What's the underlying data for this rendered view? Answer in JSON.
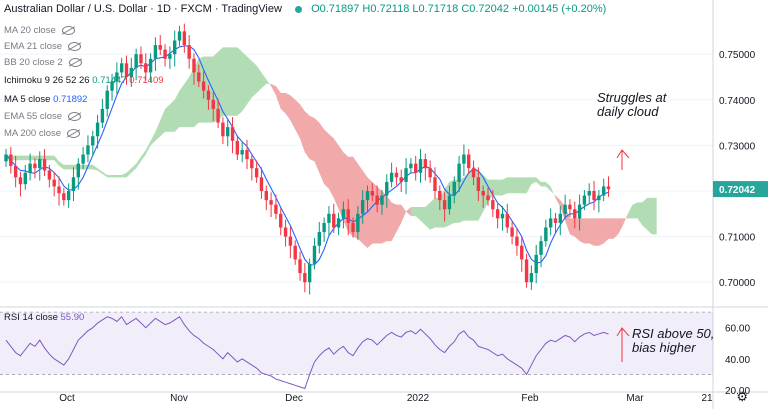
{
  "header": {
    "title": "Australian Dollar / U.S. Dollar · 1D · FXCM · TradingView",
    "ohlc": "O0.71897 H0.72118 L0.71718 C0.72042 +0.00145 (+0.20%)"
  },
  "indicators": [
    {
      "label": "MA 20 close",
      "value": "",
      "hidden": true
    },
    {
      "label": "EMA 21 close",
      "value": "",
      "hidden": true
    },
    {
      "label": "BB 20 close 2",
      "value": "",
      "hidden": true
    },
    {
      "label": "Ichimoku 9 26 52 26",
      "value": "0.71447",
      "value2": "0.71409",
      "hidden": false
    },
    {
      "label": "MA 5 close",
      "value": "0.71892",
      "hidden": false
    },
    {
      "label": "EMA 55 close",
      "value": "",
      "hidden": true
    },
    {
      "label": "MA 200 close",
      "value": "",
      "hidden": true
    }
  ],
  "rsi": {
    "label": "RSI 14 close",
    "value": "55.90"
  },
  "annotations": {
    "cloud_line1": "Struggles at",
    "cloud_line2": "daily cloud",
    "rsi_line1": "RSI above 50,",
    "rsi_line2": "bias higher"
  },
  "price_tag": "0.72042",
  "colors": {
    "up": "#089981",
    "down": "#f23645",
    "cloud_bull": "#a5d6a7",
    "cloud_bear": "#ef9a9a",
    "ma5": "#2962ff",
    "rsi": "#7e57c2",
    "tag": "#26a69a"
  },
  "chart_data": [
    {
      "type": "candlestick",
      "title": "Australian Dollar / U.S. Dollar · 1D · FXCM",
      "ylim": [
        0.695,
        0.7575
      ],
      "y_ticks": [
        0.7,
        0.71,
        0.72,
        0.73,
        0.74,
        0.75
      ],
      "y_tick_labels": [
        "0.70000",
        "0.71000",
        "0.72000",
        "0.73000",
        "0.74000",
        "0.75000"
      ],
      "x_tick_labels": [
        "Oct",
        "Nov",
        "Dec",
        "2022",
        "Feb",
        "Mar",
        "21"
      ],
      "last_close": 0.72042,
      "closes": [
        0.728,
        0.7255,
        0.723,
        0.7215,
        0.724,
        0.726,
        0.725,
        0.727,
        0.7245,
        0.7225,
        0.721,
        0.7195,
        0.718,
        0.72,
        0.723,
        0.726,
        0.728,
        0.73,
        0.732,
        0.735,
        0.738,
        0.742,
        0.744,
        0.746,
        0.748,
        0.745,
        0.747,
        0.75,
        0.748,
        0.746,
        0.749,
        0.752,
        0.751,
        0.749,
        0.75,
        0.753,
        0.755,
        0.752,
        0.749,
        0.746,
        0.744,
        0.742,
        0.74,
        0.738,
        0.735,
        0.732,
        0.734,
        0.731,
        0.728,
        0.729,
        0.727,
        0.725,
        0.723,
        0.72,
        0.718,
        0.717,
        0.715,
        0.712,
        0.71,
        0.708,
        0.705,
        0.702,
        0.7,
        0.704,
        0.708,
        0.711,
        0.713,
        0.715,
        0.712,
        0.714,
        0.716,
        0.713,
        0.711,
        0.715,
        0.718,
        0.72,
        0.719,
        0.717,
        0.719,
        0.722,
        0.724,
        0.723,
        0.722,
        0.725,
        0.726,
        0.724,
        0.727,
        0.725,
        0.723,
        0.72,
        0.718,
        0.716,
        0.719,
        0.722,
        0.726,
        0.728,
        0.725,
        0.723,
        0.72,
        0.719,
        0.718,
        0.716,
        0.714,
        0.715,
        0.712,
        0.71,
        0.708,
        0.705,
        0.7,
        0.702,
        0.706,
        0.709,
        0.712,
        0.714,
        0.713,
        0.715,
        0.717,
        0.716,
        0.714,
        0.717,
        0.719,
        0.72,
        0.718,
        0.719,
        0.721,
        0.7204
      ],
      "rsi": {
        "ylim": [
          20,
          72
        ],
        "y_ticks": [
          20,
          40,
          60
        ],
        "y_tick_labels": [
          "20.00",
          "40.00",
          "60.00"
        ],
        "values": [
          52,
          48,
          44,
          42,
          46,
          50,
          48,
          52,
          47,
          43,
          40,
          38,
          36,
          40,
          46,
          52,
          55,
          58,
          60,
          63,
          65,
          67,
          66,
          64,
          67,
          62,
          64,
          66,
          63,
          60,
          63,
          66,
          64,
          62,
          63,
          65,
          67,
          62,
          58,
          55,
          53,
          50,
          48,
          46,
          43,
          40,
          44,
          41,
          38,
          40,
          38,
          36,
          34,
          31,
          30,
          29,
          27,
          26,
          25,
          24,
          23,
          22,
          21,
          30,
          38,
          42,
          45,
          47,
          43,
          46,
          48,
          44,
          42,
          47,
          51,
          53,
          52,
          49,
          52,
          55,
          57,
          55,
          54,
          57,
          58,
          56,
          59,
          56,
          53,
          49,
          46,
          44,
          48,
          51,
          56,
          58,
          54,
          52,
          48,
          47,
          46,
          44,
          42,
          43,
          40,
          38,
          36,
          34,
          30,
          36,
          42,
          46,
          50,
          52,
          51,
          53,
          55,
          54,
          51,
          54,
          56,
          57,
          55,
          56,
          57,
          55.9
        ]
      }
    }
  ]
}
